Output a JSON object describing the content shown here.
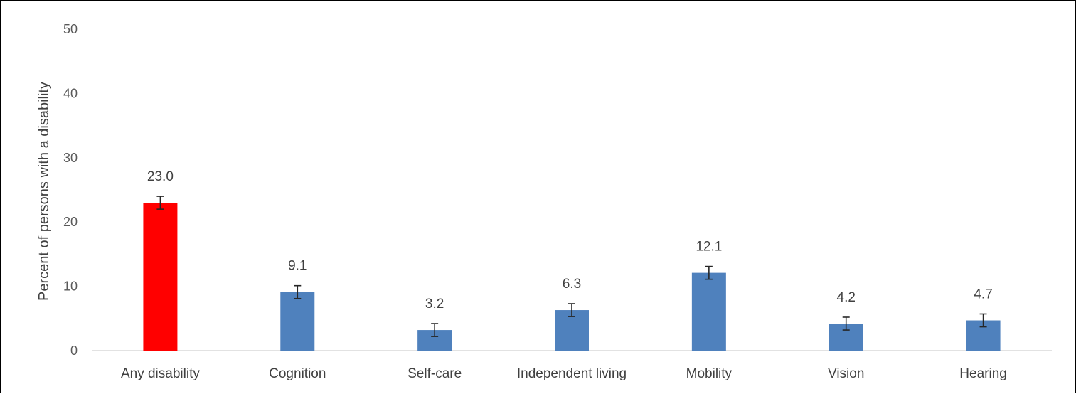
{
  "chart_data": {
    "type": "bar",
    "title": "",
    "xlabel": "",
    "ylabel": "Percent of persons  with a disability",
    "ylim": [
      0,
      50
    ],
    "yticks": [
      0,
      10,
      20,
      30,
      40,
      50
    ],
    "categories": [
      "Any disability",
      "Cognition",
      "Self-care",
      "Independent living",
      "Mobility",
      "Vision",
      "Hearing"
    ],
    "values": [
      23.0,
      9.1,
      3.2,
      6.3,
      12.1,
      4.2,
      4.7
    ],
    "value_labels": [
      "23.0",
      "9.1",
      "3.2",
      "6.3",
      "12.1",
      "4.2",
      "4.7"
    ],
    "error_bars": [
      1.0,
      1.0,
      1.0,
      1.0,
      1.0,
      1.0,
      1.0
    ],
    "bar_colors": [
      "#ff0000",
      "#4f81bd",
      "#4f81bd",
      "#4f81bd",
      "#4f81bd",
      "#4f81bd",
      "#4f81bd"
    ],
    "grid": false,
    "legend": "none"
  }
}
